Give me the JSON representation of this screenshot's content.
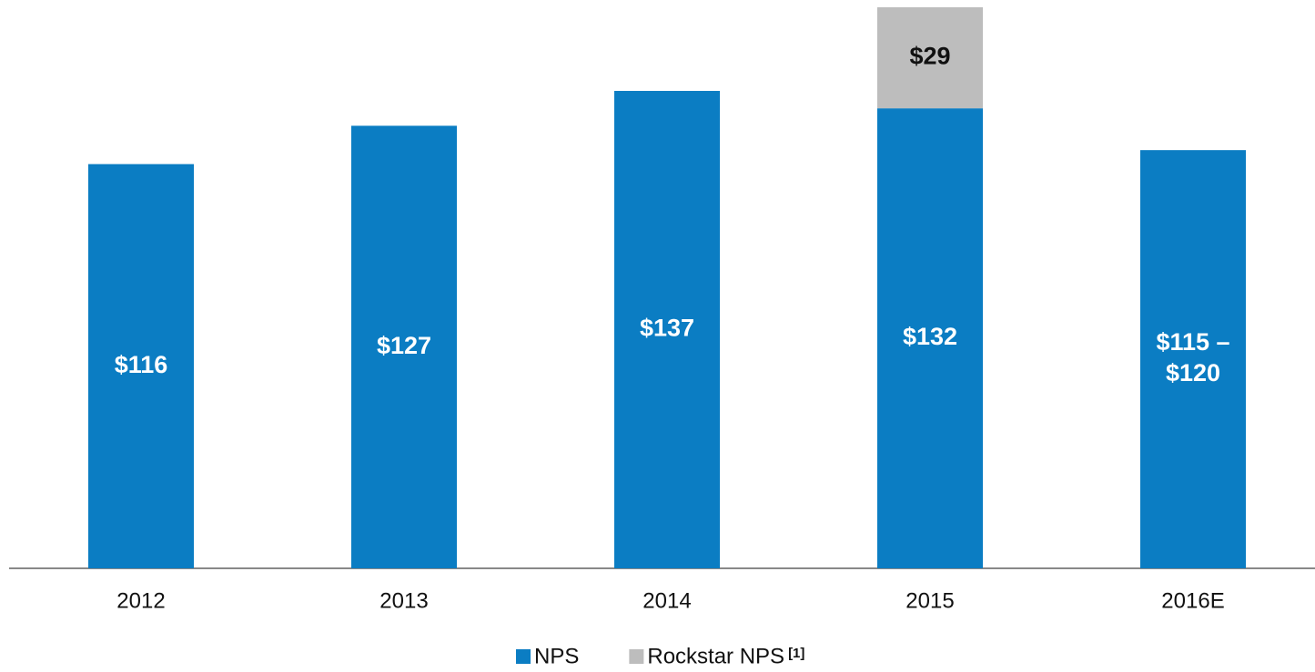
{
  "chart_data": {
    "type": "stacked_bar",
    "categories": [
      "2012",
      "2013",
      "2014",
      "2015",
      "2016E"
    ],
    "series": [
      {
        "name": "NPS",
        "color": "#0b7dc3",
        "values": [
          116,
          127,
          137,
          132,
          120
        ],
        "value_labels": [
          "$116",
          "$127",
          "$137",
          "$132",
          "$115 – $120"
        ]
      },
      {
        "name": "Rockstar NPS",
        "color": "#bdbdbd",
        "values": [
          null,
          null,
          null,
          29,
          null
        ],
        "value_labels": [
          null,
          null,
          null,
          "$29",
          null
        ]
      }
    ],
    "legend_footnote": "[1]"
  }
}
